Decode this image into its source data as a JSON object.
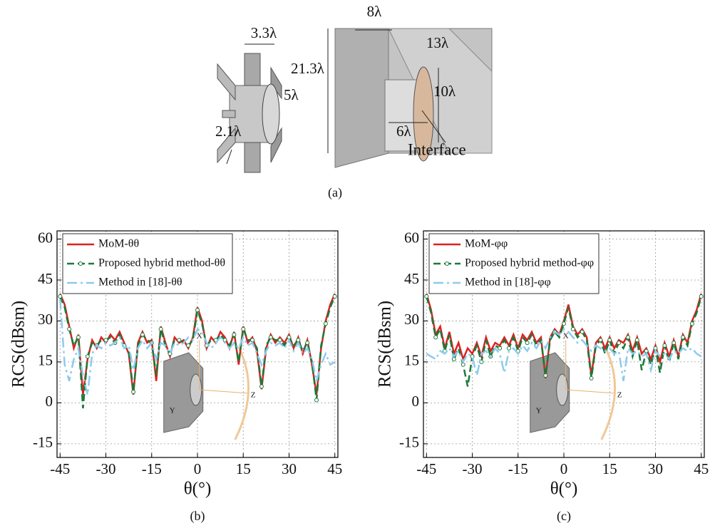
{
  "diagram": {
    "labels": [
      "3.3λ",
      "21.3λ",
      "5λ",
      "2.1λ",
      "8λ",
      "13λ",
      "10λ",
      "6λ",
      "Interface"
    ]
  },
  "captions": [
    "(a)",
    "(b)",
    "(c)"
  ],
  "insets": [
    [
      "X",
      "Z",
      "Y"
    ],
    [
      "X",
      "Z",
      "Y"
    ]
  ],
  "chart_data": [
    {
      "type": "line",
      "xlabel": "θ(°)",
      "ylabel": "RCS(dBsm)",
      "xlim": [
        -46,
        46
      ],
      "ylim": [
        -20,
        63
      ],
      "xticks": [
        -45,
        -30,
        -15,
        0,
        15,
        30,
        45
      ],
      "yticks": [
        -15,
        0,
        15,
        30,
        45,
        60
      ],
      "grid": true,
      "legend": "upper left",
      "x": [
        -45,
        -43.5,
        -42,
        -40.5,
        -39,
        -37.5,
        -36,
        -34.5,
        -33,
        -31.5,
        -30,
        -28.5,
        -27,
        -25.5,
        -24,
        -22.5,
        -21,
        -19.5,
        -18,
        -16.5,
        -15,
        -13.5,
        -12,
        -10.5,
        -9,
        -7.5,
        -6,
        -4.5,
        -3,
        -1.5,
        0,
        1.5,
        3,
        4.5,
        6,
        7.5,
        9,
        10.5,
        12,
        13.5,
        15,
        16.5,
        18,
        19.5,
        21,
        22.5,
        24,
        25.5,
        27,
        28.5,
        30,
        31.5,
        33,
        34.5,
        36,
        37.5,
        39,
        40.5,
        42,
        43.5,
        45
      ],
      "series": [
        {
          "name": "MoM-θθ",
          "color": "#e02020",
          "style": "solid",
          "values": [
            40,
            36,
            28,
            20,
            25,
            3,
            16,
            23,
            20,
            24,
            22,
            25,
            23,
            26,
            22,
            18,
            3,
            22,
            26,
            22,
            23,
            8,
            28,
            22,
            17,
            24,
            22,
            23,
            20,
            24,
            35,
            30,
            20,
            24,
            22,
            26,
            24,
            20,
            26,
            14,
            28,
            22,
            24,
            19,
            5,
            20,
            25,
            22,
            24,
            22,
            25,
            20,
            24,
            18,
            23,
            14,
            3,
            20,
            30,
            36,
            40
          ]
        },
        {
          "name": "Proposed hybrid method-θθ",
          "color": "#1a7a3a",
          "style": "dash",
          "marker": "circle",
          "values": [
            39,
            35,
            27,
            21,
            24,
            -2,
            17,
            22,
            21,
            23,
            23,
            24,
            22,
            25,
            21,
            19,
            4,
            21,
            25,
            23,
            22,
            10,
            27,
            21,
            18,
            23,
            23,
            22,
            21,
            23,
            34,
            29,
            21,
            23,
            23,
            25,
            23,
            21,
            25,
            15,
            27,
            23,
            23,
            20,
            6,
            21,
            24,
            23,
            23,
            21,
            24,
            21,
            23,
            19,
            22,
            15,
            1,
            21,
            29,
            35,
            39
          ]
        },
        {
          "name": "Method in [18]-θθ",
          "color": "#8ccbee",
          "style": "dashdot",
          "values": [
            38,
            14,
            8,
            16,
            20,
            10,
            3,
            18,
            21,
            20,
            22,
            21,
            22,
            24,
            20,
            21,
            12,
            20,
            23,
            20,
            22,
            16,
            22,
            21,
            18,
            22,
            21,
            22,
            24,
            23,
            27,
            26,
            22,
            20,
            22,
            24,
            22,
            20,
            22,
            20,
            24,
            21,
            22,
            18,
            14,
            19,
            22,
            21,
            22,
            20,
            23,
            19,
            22,
            18,
            20,
            16,
            8,
            14,
            18,
            14,
            15
          ]
        }
      ]
    },
    {
      "type": "line",
      "xlabel": "θ(°)",
      "ylabel": "RCS(dBsm)",
      "xlim": [
        -46,
        46
      ],
      "ylim": [
        -20,
        63
      ],
      "xticks": [
        -45,
        -30,
        -15,
        0,
        15,
        30,
        45
      ],
      "yticks": [
        -15,
        0,
        15,
        30,
        45,
        60
      ],
      "grid": true,
      "legend": "upper left",
      "x": [
        -45,
        -43.5,
        -42,
        -40.5,
        -39,
        -37.5,
        -36,
        -34.5,
        -33,
        -31.5,
        -30,
        -28.5,
        -27,
        -25.5,
        -24,
        -22.5,
        -21,
        -19.5,
        -18,
        -16.5,
        -15,
        -13.5,
        -12,
        -10.5,
        -9,
        -7.5,
        -6,
        -4.5,
        -3,
        -1.5,
        0,
        1.5,
        3,
        4.5,
        6,
        7.5,
        9,
        10.5,
        12,
        13.5,
        15,
        16.5,
        18,
        19.5,
        21,
        22.5,
        24,
        25.5,
        27,
        28.5,
        30,
        31.5,
        33,
        34.5,
        36,
        37.5,
        39,
        40.5,
        42,
        43.5,
        45
      ],
      "series": [
        {
          "name": "MoM-φφ",
          "color": "#e02020",
          "style": "solid",
          "values": [
            40,
            34,
            25,
            28,
            20,
            26,
            18,
            22,
            16,
            20,
            18,
            22,
            17,
            24,
            19,
            22,
            21,
            24,
            21,
            25,
            20,
            25,
            23,
            26,
            22,
            24,
            9,
            24,
            27,
            25,
            30,
            36,
            28,
            25,
            27,
            24,
            10,
            22,
            24,
            20,
            24,
            20,
            23,
            22,
            25,
            19,
            24,
            18,
            20,
            16,
            21,
            15,
            22,
            17,
            23,
            17,
            25,
            22,
            30,
            34,
            40
          ]
        },
        {
          "name": "Proposed hybrid method-φφ",
          "color": "#1a7a3a",
          "style": "dash",
          "marker": "circle",
          "values": [
            39,
            33,
            24,
            27,
            19,
            25,
            16,
            20,
            14,
            6,
            17,
            21,
            15,
            23,
            17,
            21,
            20,
            23,
            20,
            24,
            19,
            24,
            22,
            25,
            21,
            23,
            10,
            23,
            26,
            24,
            29,
            35,
            27,
            24,
            26,
            23,
            9,
            21,
            23,
            18,
            23,
            18,
            22,
            20,
            24,
            17,
            23,
            12,
            19,
            14,
            20,
            11,
            21,
            15,
            22,
            16,
            24,
            21,
            29,
            33,
            39
          ]
        },
        {
          "name": "Method in [18]-φφ",
          "color": "#8ccbee",
          "style": "dashdot",
          "values": [
            18,
            17,
            16,
            19,
            18,
            20,
            17,
            19,
            15,
            18,
            17,
            10,
            18,
            19,
            17,
            20,
            18,
            11,
            19,
            20,
            18,
            21,
            19,
            22,
            20,
            23,
            20,
            24,
            26,
            25,
            27,
            26,
            24,
            22,
            23,
            21,
            19,
            21,
            20,
            19,
            20,
            18,
            19,
            8,
            20,
            18,
            19,
            17,
            18,
            12,
            19,
            17,
            18,
            16,
            19,
            18,
            20,
            19,
            20,
            18,
            17
          ]
        }
      ]
    }
  ]
}
